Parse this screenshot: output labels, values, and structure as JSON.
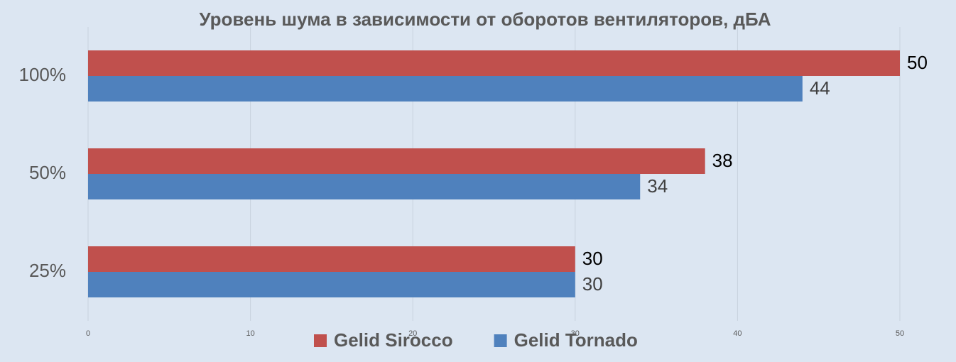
{
  "chart_data": {
    "type": "bar",
    "orientation": "horizontal",
    "title": "Уровень шума в зависимости от оборотов вентиляторов, дБА",
    "categories": [
      "100%",
      "50%",
      "25%"
    ],
    "series": [
      {
        "name": "Gelid Sirocco",
        "color": "#c0504d",
        "label_color": "#000000",
        "values": [
          50,
          38,
          30
        ]
      },
      {
        "name": "Gelid Tornado",
        "color": "#4f81bd",
        "label_color": "#404040",
        "values": [
          44,
          34,
          30
        ]
      }
    ],
    "xlim": [
      0,
      50
    ],
    "xticks": [
      0,
      10,
      20,
      30,
      40,
      50
    ],
    "grid": true,
    "legend": "bottom"
  }
}
